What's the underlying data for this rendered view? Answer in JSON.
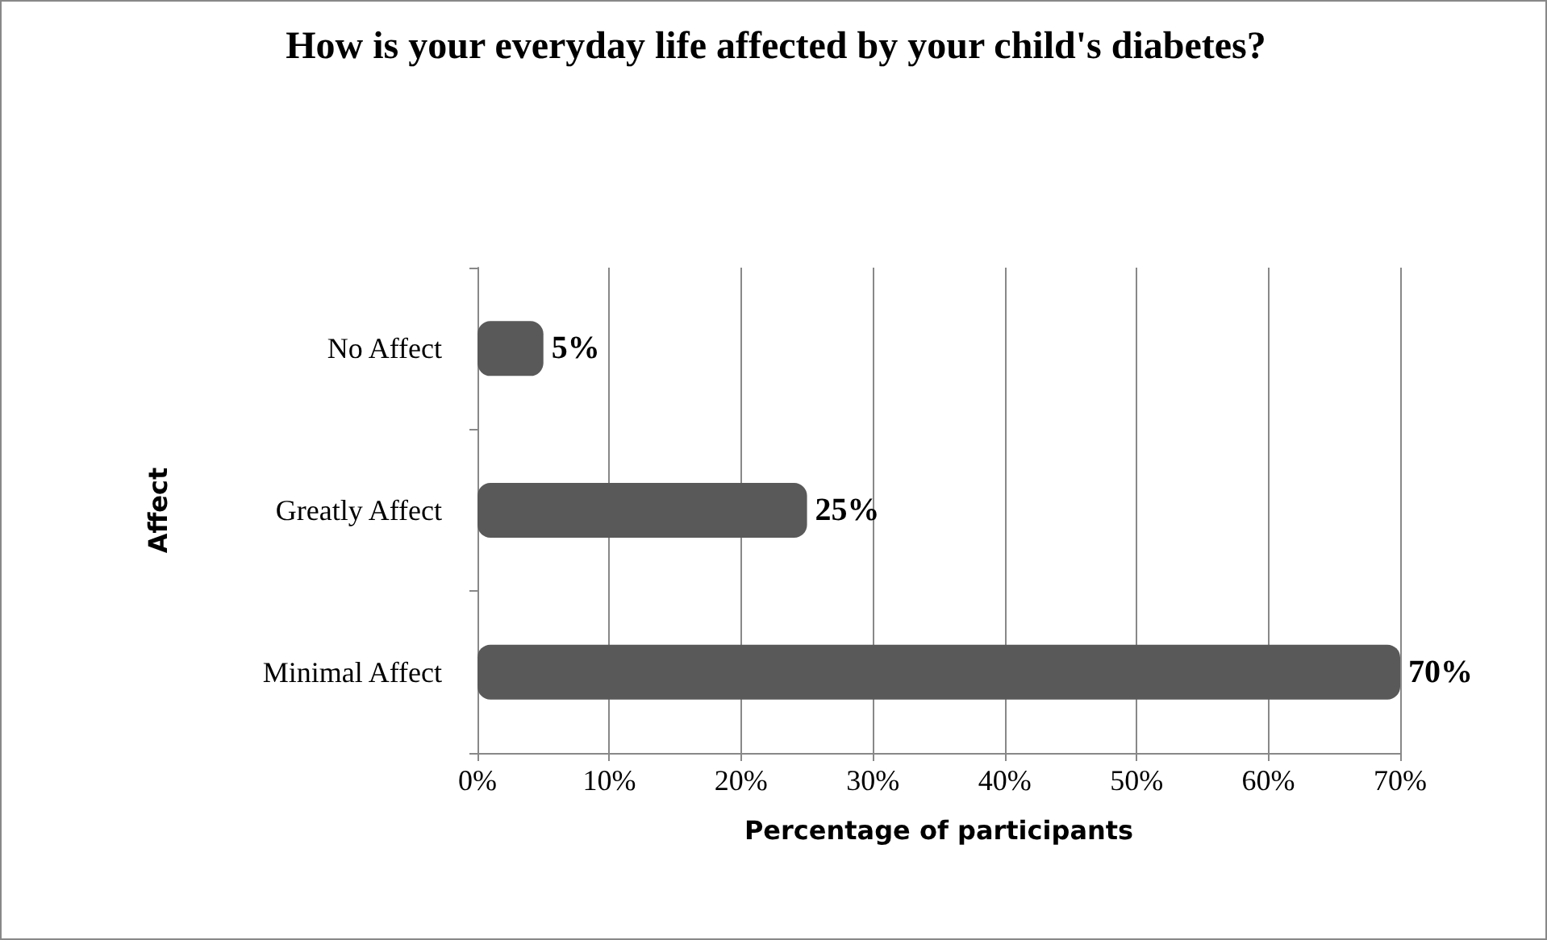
{
  "chart_data": {
    "type": "bar",
    "orientation": "horizontal",
    "title": "How is your everyday life affected by your child's diabetes?",
    "xlabel": "Percentage of participants",
    "ylabel": "Affect",
    "categories": [
      "No Affect",
      "Greatly Affect",
      "Minimal Affect"
    ],
    "values": [
      5,
      25,
      70
    ],
    "color": "#595959",
    "value_labels": [
      "5%",
      "25%",
      "70%"
    ],
    "xlim": [
      0,
      70
    ],
    "xticks": [
      {
        "value": 0,
        "label": "0%"
      },
      {
        "value": 10,
        "label": "10%"
      },
      {
        "value": 20,
        "label": "20%"
      },
      {
        "value": 30,
        "label": "30%"
      },
      {
        "value": 40,
        "label": "40%"
      },
      {
        "value": 50,
        "label": "50%"
      },
      {
        "value": 60,
        "label": "60%"
      },
      {
        "value": 70,
        "label": "70%"
      }
    ],
    "grid": "x"
  }
}
